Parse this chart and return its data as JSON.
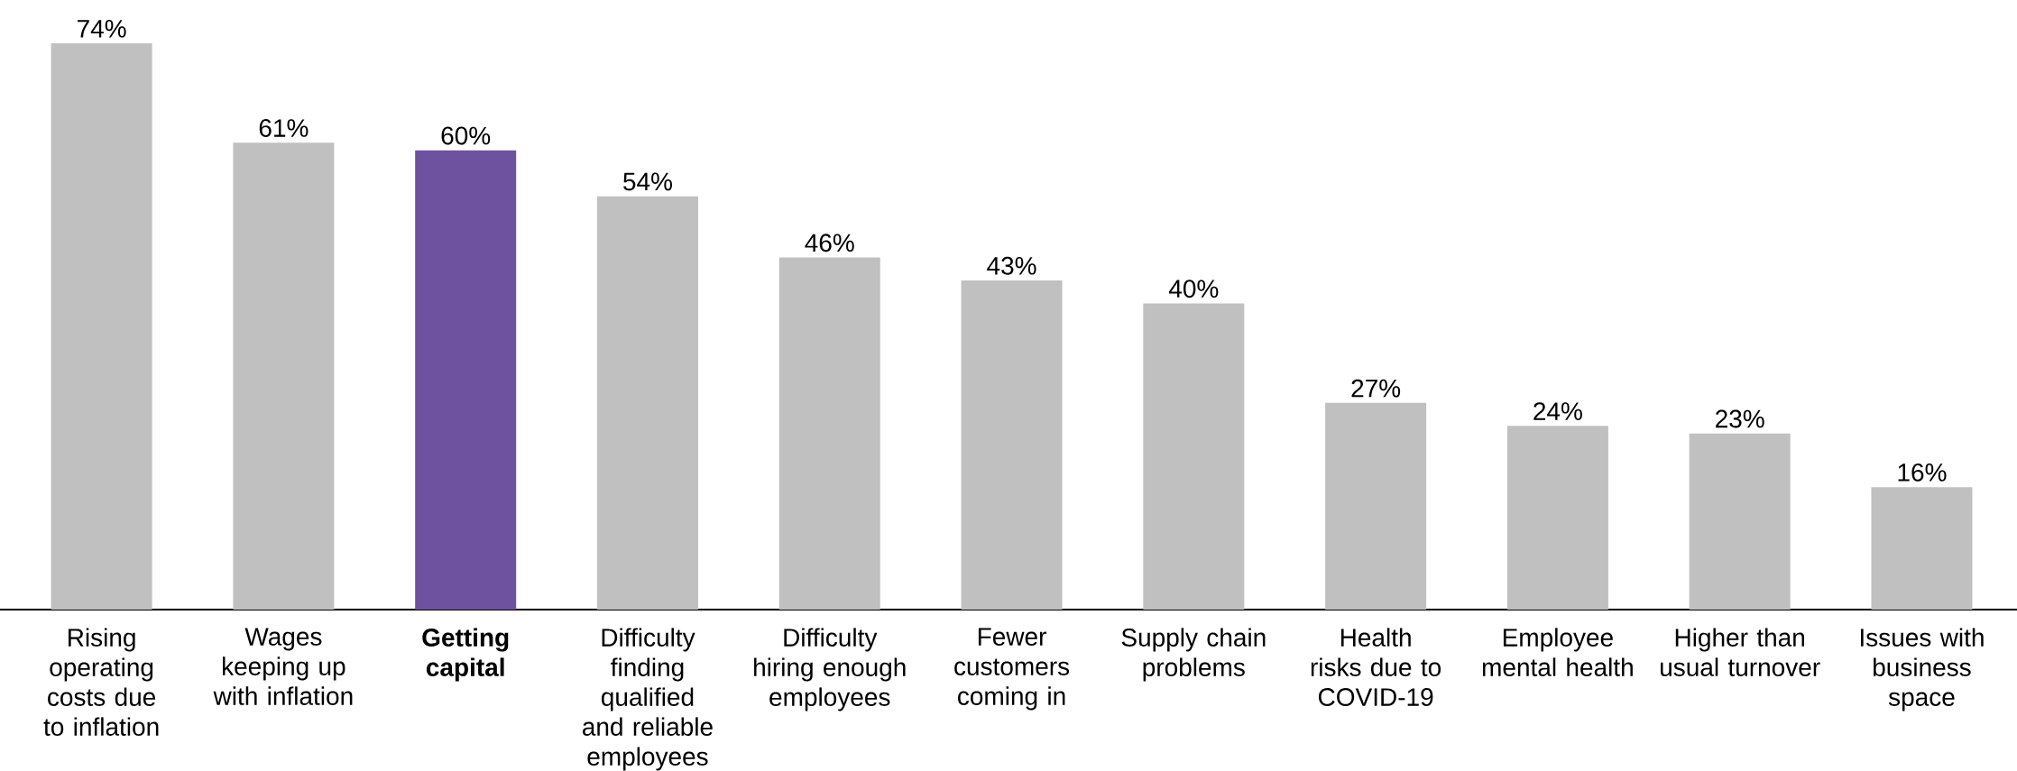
{
  "chart_data": {
    "type": "bar",
    "categories": [
      "Rising operating costs due to inflation",
      "Wages keeping up with inflation",
      "**Getting capital**",
      "Difficulty finding qualified and reliable employees",
      "Difficulty hiring enough employees",
      "Fewer customers coming in",
      "Supply chain problems",
      "Health risks due to COVID-19",
      "Employee mental health",
      "Higher than usual turnover",
      "Issues with business space"
    ],
    "values": [
      74,
      61,
      60,
      54,
      46,
      43,
      40,
      27,
      24,
      23,
      16
    ],
    "value_labels": [
      "74%",
      "61%",
      "60%",
      "54%",
      "46%",
      "43%",
      "40%",
      "27%",
      "24%",
      "23%",
      "16%"
    ],
    "colors": [
      "#c0c0c0",
      "#c0c0c0",
      "#6e52a0",
      "#c0c0c0",
      "#c0c0c0",
      "#c0c0c0",
      "#c0c0c0",
      "#c0c0c0",
      "#c0c0c0",
      "#c0c0c0",
      "#c0c0c0"
    ],
    "ylim": [
      0,
      74
    ],
    "tick_labels": "x"
  }
}
